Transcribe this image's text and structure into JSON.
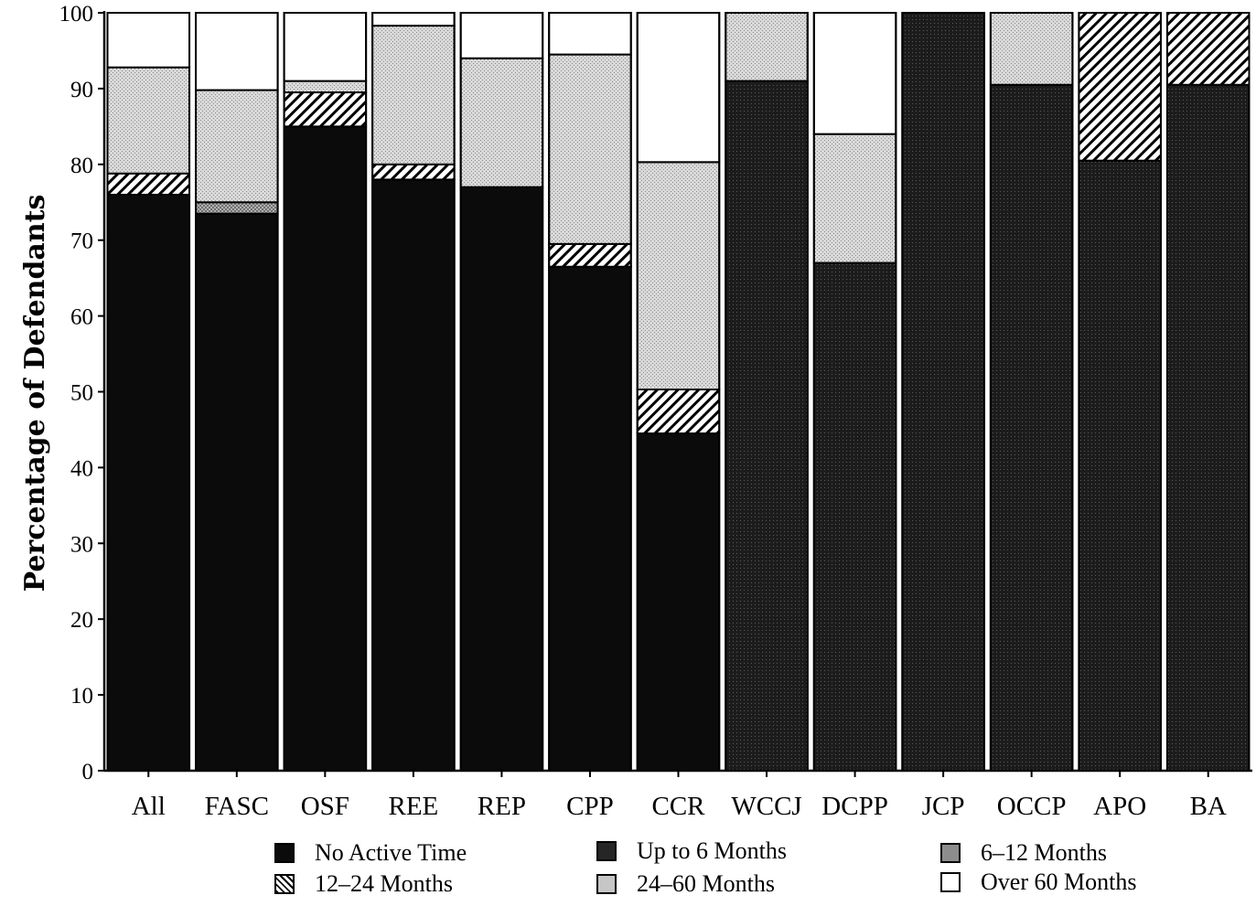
{
  "chart_data": {
    "type": "bar",
    "stacked": true,
    "ylabel": "Percentage of Defendants",
    "xlabel": "",
    "ylim": [
      0,
      100
    ],
    "yticks": [
      0,
      10,
      20,
      30,
      40,
      50,
      60,
      70,
      80,
      90,
      100
    ],
    "categories": [
      "All",
      "FASC",
      "OSF",
      "REE",
      "REP",
      "CPP",
      "CCR",
      "WCCJ",
      "DCPP",
      "JCP",
      "OCCP",
      "APO",
      "BA"
    ],
    "series": [
      {
        "name": "No Active Time",
        "pattern": "black",
        "values": [
          76,
          73.5,
          85,
          78,
          77,
          66.5,
          44.5,
          0,
          0,
          0,
          0,
          0,
          0
        ]
      },
      {
        "name": "Up to 6 Months",
        "pattern": "darkdot",
        "values": [
          0,
          0,
          0,
          0,
          0,
          0,
          0,
          91,
          67,
          100,
          90.5,
          80.5,
          90.5
        ]
      },
      {
        "name": "6-12 Months",
        "pattern": "meddot",
        "values": [
          0,
          1.5,
          0,
          0,
          0,
          0,
          0,
          0,
          0,
          0,
          0,
          0,
          0
        ]
      },
      {
        "name": "12-24 Months",
        "pattern": "hatch",
        "values": [
          2.8,
          0,
          4.5,
          2,
          0,
          3,
          5.8,
          0,
          0,
          0,
          0,
          19.5,
          9.5
        ]
      },
      {
        "name": "24-60 Months",
        "pattern": "lightdot",
        "values": [
          14,
          14.8,
          1.5,
          18.3,
          17,
          25,
          30,
          9,
          17,
          0,
          9.5,
          0,
          0
        ]
      },
      {
        "name": "Over 60 Months",
        "pattern": "white",
        "values": [
          7.2,
          10.2,
          9,
          1.7,
          6,
          5.5,
          19.7,
          0,
          16,
          0,
          0,
          0,
          0
        ]
      }
    ],
    "colors": {
      "black": "#0b0b0b",
      "darkdot": "#262626",
      "meddot": "#8d8d8d",
      "lightdot": "#c6c6c6",
      "white": "#ffffff"
    }
  },
  "legend": {
    "items": [
      {
        "label": "No Active Time",
        "pattern": "black"
      },
      {
        "label": "Up to 6 Months",
        "pattern": "darkdot"
      },
      {
        "label": "6–12 Months",
        "pattern": "meddot"
      },
      {
        "label": "12–24 Months",
        "pattern": "hatch"
      },
      {
        "label": "24–60 Months",
        "pattern": "lightdot"
      },
      {
        "label": "Over 60 Months",
        "pattern": "white"
      }
    ]
  },
  "category_labels": [
    "All",
    "FASC",
    "OSF",
    "REE",
    "REP",
    "CPP",
    "CCR",
    "WCCJ",
    "DCPP",
    "JCP",
    "OCCP",
    "APO",
    "BA"
  ]
}
